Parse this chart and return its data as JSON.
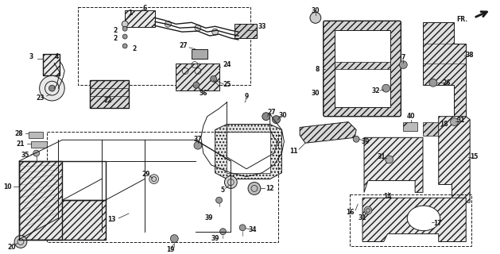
{
  "bg_color": "#ffffff",
  "lc": "#1a1a1a",
  "fig_width": 6.29,
  "fig_height": 3.2,
  "dpi": 100
}
